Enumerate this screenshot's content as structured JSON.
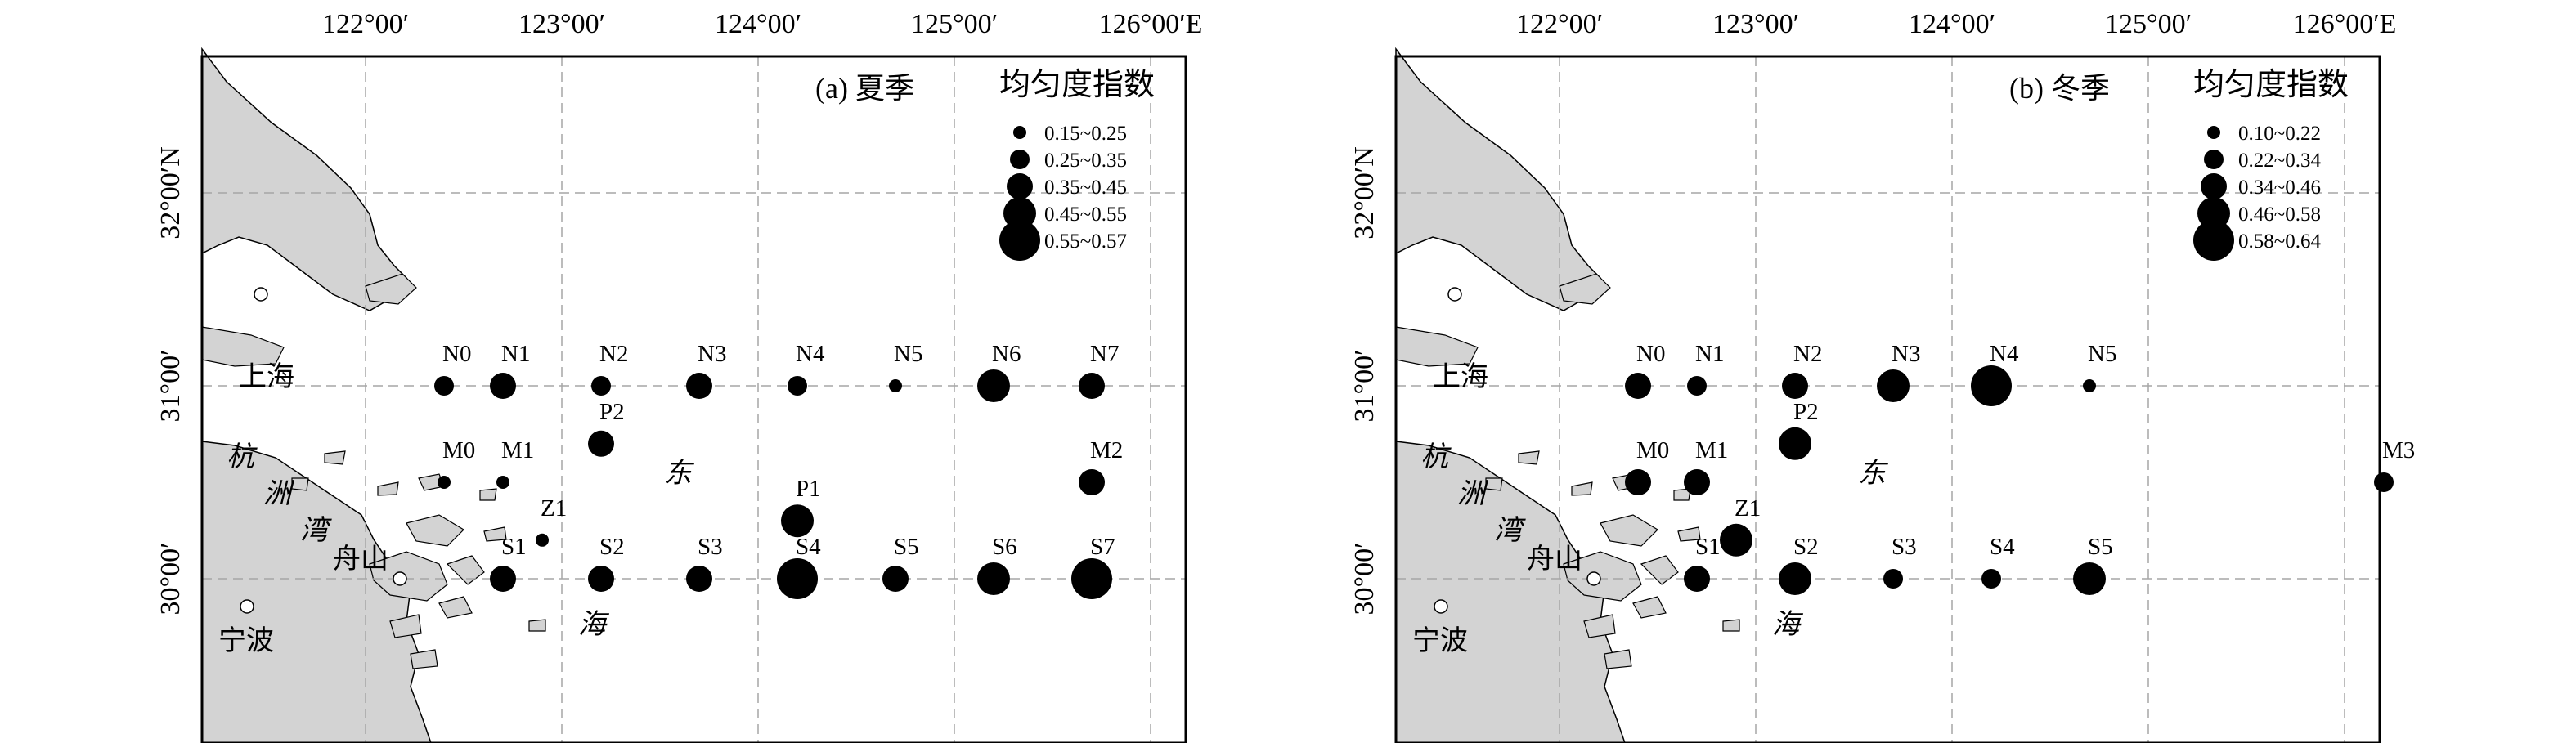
{
  "lon_ticks": [
    "122°00′",
    "123°00′",
    "124°00′",
    "125°00′",
    "126°00′E"
  ],
  "lat_ticks": [
    "32°00′N",
    "31°00′",
    "30°00′"
  ],
  "places": {
    "shanghai": "上海",
    "ningbo": "宁波",
    "zhoushan": "舟山"
  },
  "bay_chars": [
    "杭",
    "洲",
    "湾"
  ],
  "sea_chars": [
    "东",
    "海"
  ],
  "legend_title": "均匀度指数",
  "colors": {
    "land": "#d3d3d3",
    "station": "#000000",
    "grid": "#a6a6a6",
    "frame": "#000000",
    "city": "#ffffff"
  },
  "panels": [
    {
      "title": "(a) 夏季",
      "legend": [
        {
          "label": "0.15~0.25",
          "value": 0.2
        },
        {
          "label": "0.25~0.35",
          "value": 0.3
        },
        {
          "label": "0.35~0.45",
          "value": 0.4
        },
        {
          "label": "0.45~0.55",
          "value": 0.5
        },
        {
          "label": "0.55~0.57",
          "value": 0.56
        }
      ],
      "stations": [
        {
          "name": "N0",
          "lon": 122.4,
          "lat": 31.0,
          "cls": 2
        },
        {
          "name": "N1",
          "lon": 122.7,
          "lat": 31.0,
          "cls": 3
        },
        {
          "name": "N2",
          "lon": 123.2,
          "lat": 31.0,
          "cls": 2
        },
        {
          "name": "N3",
          "lon": 123.7,
          "lat": 31.0,
          "cls": 3
        },
        {
          "name": "N4",
          "lon": 124.2,
          "lat": 31.0,
          "cls": 2
        },
        {
          "name": "N5",
          "lon": 124.7,
          "lat": 31.0,
          "cls": 1
        },
        {
          "name": "N6",
          "lon": 125.2,
          "lat": 31.0,
          "cls": 4
        },
        {
          "name": "N7",
          "lon": 125.7,
          "lat": 31.0,
          "cls": 3
        },
        {
          "name": "P2",
          "lon": 123.2,
          "lat": 30.7,
          "cls": 3
        },
        {
          "name": "M0",
          "lon": 122.4,
          "lat": 30.5,
          "cls": 1
        },
        {
          "name": "M1",
          "lon": 122.7,
          "lat": 30.5,
          "cls": 1
        },
        {
          "name": "M2",
          "lon": 125.7,
          "lat": 30.5,
          "cls": 3
        },
        {
          "name": "P1",
          "lon": 124.2,
          "lat": 30.3,
          "cls": 4
        },
        {
          "name": "Z1",
          "lon": 122.9,
          "lat": 30.2,
          "cls": 1
        },
        {
          "name": "S1",
          "lon": 122.7,
          "lat": 30.0,
          "cls": 3
        },
        {
          "name": "S2",
          "lon": 123.2,
          "lat": 30.0,
          "cls": 3
        },
        {
          "name": "S3",
          "lon": 123.7,
          "lat": 30.0,
          "cls": 3
        },
        {
          "name": "S4",
          "lon": 124.2,
          "lat": 30.0,
          "cls": 5
        },
        {
          "name": "S5",
          "lon": 124.7,
          "lat": 30.0,
          "cls": 3
        },
        {
          "name": "S6",
          "lon": 125.2,
          "lat": 30.0,
          "cls": 4
        },
        {
          "name": "S7",
          "lon": 125.7,
          "lat": 30.0,
          "cls": 5
        }
      ]
    },
    {
      "title": "(b) 冬季",
      "legend": [
        {
          "label": "0.10~0.22",
          "value": 0.16
        },
        {
          "label": "0.22~0.34",
          "value": 0.28
        },
        {
          "label": "0.34~0.46",
          "value": 0.4
        },
        {
          "label": "0.46~0.58",
          "value": 0.52
        },
        {
          "label": "0.58~0.64",
          "value": 0.61
        }
      ],
      "stations": [
        {
          "name": "N0",
          "lon": 122.4,
          "lat": 31.0,
          "cls": 3
        },
        {
          "name": "N1",
          "lon": 122.7,
          "lat": 31.0,
          "cls": 2
        },
        {
          "name": "N2",
          "lon": 123.2,
          "lat": 31.0,
          "cls": 3
        },
        {
          "name": "N3",
          "lon": 123.7,
          "lat": 31.0,
          "cls": 4
        },
        {
          "name": "N4",
          "lon": 124.2,
          "lat": 31.0,
          "cls": 5
        },
        {
          "name": "N5",
          "lon": 124.7,
          "lat": 31.0,
          "cls": 1
        },
        {
          "name": "P2",
          "lon": 123.2,
          "lat": 30.7,
          "cls": 4
        },
        {
          "name": "M0",
          "lon": 122.4,
          "lat": 30.5,
          "cls": 3
        },
        {
          "name": "M1",
          "lon": 122.7,
          "lat": 30.5,
          "cls": 3
        },
        {
          "name": "M3",
          "lon": 126.2,
          "lat": 30.5,
          "cls": 2
        },
        {
          "name": "Z1",
          "lon": 122.9,
          "lat": 30.2,
          "cls": 4
        },
        {
          "name": "S1",
          "lon": 122.7,
          "lat": 30.0,
          "cls": 3
        },
        {
          "name": "S2",
          "lon": 123.2,
          "lat": 30.0,
          "cls": 4
        },
        {
          "name": "S3",
          "lon": 123.7,
          "lat": 30.0,
          "cls": 2
        },
        {
          "name": "S4",
          "lon": 124.2,
          "lat": 30.0,
          "cls": 2
        },
        {
          "name": "S5",
          "lon": 124.7,
          "lat": 30.0,
          "cls": 4
        }
      ]
    }
  ]
}
